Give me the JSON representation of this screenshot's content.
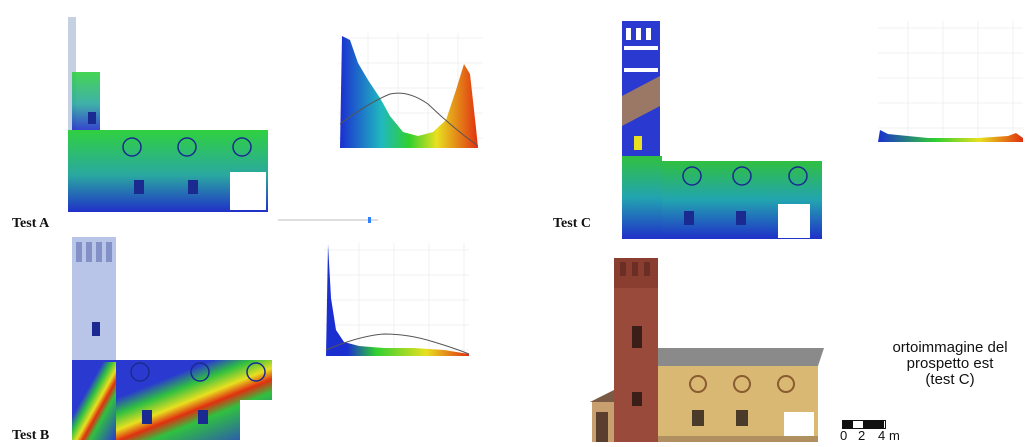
{
  "labels": {
    "test_a": "Test A",
    "test_b": "Test B",
    "test_c": "Test C"
  },
  "caption": {
    "line1": "ortoimmagine del",
    "line2": "prospetto est",
    "line3": "(test C)"
  },
  "scale_bar": {
    "ticks": [
      "0",
      "2",
      "4"
    ],
    "unit": "m"
  },
  "colors": {
    "low": "#1f2fcf",
    "mid": "#18c42a",
    "mid2": "#e8e820",
    "high": "#e8421a",
    "brick": "#9a4a3a",
    "plaster": "#d8b872",
    "roof": "#8a8a8a"
  }
}
